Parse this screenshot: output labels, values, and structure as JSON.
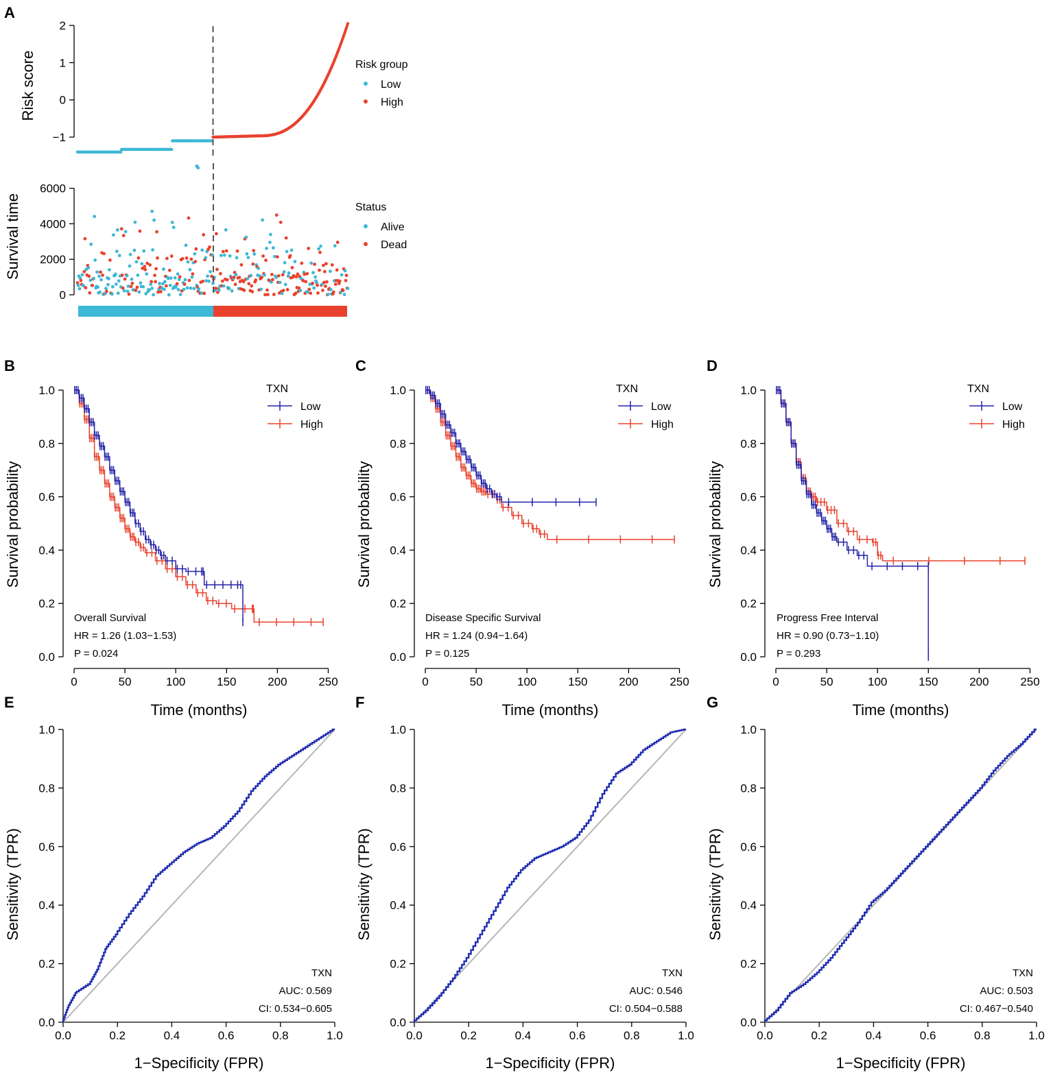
{
  "colors": {
    "low_point": "#3db8d5",
    "high_point": "#e8422e",
    "low_line": "#2323a8",
    "high_line": "#e8422e",
    "roc_line": "#1f2cb0",
    "diag": "#b5b5b5",
    "dash": "#555555"
  },
  "chart_data": [
    {
      "panel": "A",
      "type": "scatter",
      "subplot": "risk_score",
      "ylabel": "Risk score",
      "ylim": [
        -1.5,
        2.1
      ],
      "yticks": [
        -1,
        0,
        1,
        2
      ],
      "legend_title": "Risk group",
      "legend": [
        "Low",
        "High"
      ],
      "n_samples": 400,
      "cutoff_index": 200,
      "series": [
        {
          "name": "Low",
          "segments": [
            [
              0,
              65,
              -1.4
            ],
            [
              65,
              140,
              -1.33
            ],
            [
              140,
              200,
              -1.1
            ]
          ]
        },
        {
          "name": "High",
          "start": -1.0,
          "end": 2.05
        }
      ]
    },
    {
      "panel": "A",
      "type": "scatter",
      "subplot": "survival_time",
      "ylabel": "Survival time",
      "ylim": [
        0,
        7400
      ],
      "yticks": [
        0,
        2000,
        4000,
        6000
      ],
      "legend_title": "Status",
      "legend": [
        "Alive",
        "Dead"
      ],
      "bar_groups": [
        "Low",
        "High"
      ]
    },
    {
      "panel": "B",
      "type": "line",
      "annotation": "Overall Survival",
      "hr": "HR = 1.26 (1.03−1.53)",
      "p": "P = 0.024",
      "xlabel": "Time (months)",
      "ylabel": "Survival probability",
      "xlim": [
        0,
        250
      ],
      "ylim": [
        0,
        1
      ],
      "xticks": [
        0,
        50,
        100,
        150,
        200,
        250
      ],
      "yticks": [
        0.0,
        0.2,
        0.4,
        0.6,
        0.8,
        1.0
      ],
      "legend_title": "TXN",
      "series": [
        {
          "name": "Low",
          "points": [
            [
              0,
              1
            ],
            [
              5,
              0.97
            ],
            [
              10,
              0.93
            ],
            [
              15,
              0.88
            ],
            [
              20,
              0.83
            ],
            [
              25,
              0.79
            ],
            [
              30,
              0.75
            ],
            [
              35,
              0.7
            ],
            [
              40,
              0.66
            ],
            [
              45,
              0.62
            ],
            [
              50,
              0.58
            ],
            [
              55,
              0.54
            ],
            [
              60,
              0.5
            ],
            [
              65,
              0.47
            ],
            [
              70,
              0.44
            ],
            [
              75,
              0.42
            ],
            [
              80,
              0.4
            ],
            [
              85,
              0.38
            ],
            [
              90,
              0.36
            ],
            [
              100,
              0.33
            ],
            [
              110,
              0.32
            ],
            [
              125,
              0.32
            ],
            [
              128,
              0.27
            ],
            [
              160,
              0.27
            ],
            [
              166,
              0.13
            ]
          ]
        },
        {
          "name": "High",
          "points": [
            [
              0,
              1
            ],
            [
              5,
              0.95
            ],
            [
              10,
              0.89
            ],
            [
              15,
              0.82
            ],
            [
              20,
              0.75
            ],
            [
              25,
              0.7
            ],
            [
              30,
              0.65
            ],
            [
              35,
              0.6
            ],
            [
              40,
              0.56
            ],
            [
              45,
              0.52
            ],
            [
              50,
              0.48
            ],
            [
              55,
              0.45
            ],
            [
              60,
              0.43
            ],
            [
              65,
              0.41
            ],
            [
              70,
              0.39
            ],
            [
              80,
              0.36
            ],
            [
              90,
              0.33
            ],
            [
              100,
              0.3
            ],
            [
              110,
              0.27
            ],
            [
              120,
              0.24
            ],
            [
              130,
              0.21
            ],
            [
              140,
              0.2
            ],
            [
              155,
              0.18
            ],
            [
              175,
              0.18
            ],
            [
              177,
              0.13
            ],
            [
              245,
              0.13
            ]
          ]
        }
      ]
    },
    {
      "panel": "C",
      "type": "line",
      "annotation": "Disease Specific Survival",
      "hr": "HR = 1.24 (0.94−1.64)",
      "p": "P = 0.125",
      "xlabel": "Time (months)",
      "ylabel": "Survival probability",
      "xlim": [
        0,
        250
      ],
      "ylim": [
        0,
        1
      ],
      "xticks": [
        0,
        50,
        100,
        150,
        200,
        250
      ],
      "yticks": [
        0.0,
        0.2,
        0.4,
        0.6,
        0.8,
        1.0
      ],
      "legend_title": "TXN",
      "series": [
        {
          "name": "Low",
          "points": [
            [
              0,
              1
            ],
            [
              5,
              0.98
            ],
            [
              10,
              0.95
            ],
            [
              15,
              0.91
            ],
            [
              20,
              0.87
            ],
            [
              25,
              0.84
            ],
            [
              30,
              0.8
            ],
            [
              35,
              0.77
            ],
            [
              40,
              0.74
            ],
            [
              45,
              0.71
            ],
            [
              50,
              0.68
            ],
            [
              55,
              0.65
            ],
            [
              60,
              0.63
            ],
            [
              65,
              0.61
            ],
            [
              70,
              0.6
            ],
            [
              75,
              0.58
            ],
            [
              168,
              0.58
            ]
          ]
        },
        {
          "name": "High",
          "points": [
            [
              0,
              1
            ],
            [
              5,
              0.97
            ],
            [
              10,
              0.93
            ],
            [
              15,
              0.88
            ],
            [
              20,
              0.83
            ],
            [
              25,
              0.79
            ],
            [
              30,
              0.75
            ],
            [
              35,
              0.71
            ],
            [
              40,
              0.68
            ],
            [
              45,
              0.65
            ],
            [
              50,
              0.63
            ],
            [
              55,
              0.62
            ],
            [
              60,
              0.61
            ],
            [
              70,
              0.59
            ],
            [
              75,
              0.56
            ],
            [
              85,
              0.53
            ],
            [
              95,
              0.5
            ],
            [
              105,
              0.48
            ],
            [
              112,
              0.46
            ],
            [
              120,
              0.44
            ],
            [
              245,
              0.44
            ]
          ]
        }
      ]
    },
    {
      "panel": "D",
      "type": "line",
      "annotation": "Progress Free Interval",
      "hr": "HR = 0.90 (0.73−1.10)",
      "p": "P = 0.293",
      "xlabel": "Time (months)",
      "ylabel": "Survival probability",
      "xlim": [
        0,
        250
      ],
      "ylim": [
        0,
        1
      ],
      "xticks": [
        0,
        50,
        100,
        150,
        200,
        250
      ],
      "yticks": [
        0.0,
        0.2,
        0.4,
        0.6,
        0.8,
        1.0
      ],
      "legend_title": "TXN",
      "series": [
        {
          "name": "Low",
          "points": [
            [
              0,
              1
            ],
            [
              5,
              0.95
            ],
            [
              10,
              0.88
            ],
            [
              15,
              0.8
            ],
            [
              20,
              0.72
            ],
            [
              25,
              0.66
            ],
            [
              30,
              0.61
            ],
            [
              35,
              0.57
            ],
            [
              40,
              0.54
            ],
            [
              45,
              0.51
            ],
            [
              50,
              0.48
            ],
            [
              55,
              0.45
            ],
            [
              60,
              0.43
            ],
            [
              70,
              0.4
            ],
            [
              80,
              0.38
            ],
            [
              90,
              0.34
            ],
            [
              150,
              0.34
            ],
            [
              150,
              0.0
            ]
          ]
        },
        {
          "name": "High",
          "points": [
            [
              0,
              1
            ],
            [
              5,
              0.95
            ],
            [
              10,
              0.88
            ],
            [
              15,
              0.8
            ],
            [
              20,
              0.73
            ],
            [
              25,
              0.67
            ],
            [
              30,
              0.62
            ],
            [
              35,
              0.6
            ],
            [
              40,
              0.58
            ],
            [
              50,
              0.55
            ],
            [
              60,
              0.5
            ],
            [
              70,
              0.47
            ],
            [
              80,
              0.44
            ],
            [
              95,
              0.43
            ],
            [
              100,
              0.38
            ],
            [
              105,
              0.36
            ],
            [
              245,
              0.36
            ]
          ]
        }
      ]
    },
    {
      "panel": "E",
      "type": "line",
      "label": "TXN",
      "auc": "AUC: 0.569",
      "ci": "CI: 0.534−0.605",
      "xlabel": "1−Specificity (FPR)",
      "ylabel": "Sensitivity (TPR)",
      "xlim": [
        0,
        1
      ],
      "ylim": [
        0,
        1
      ],
      "xticks": [
        0.0,
        0.2,
        0.4,
        0.6,
        0.8,
        1.0
      ],
      "yticks": [
        0.0,
        0.2,
        0.4,
        0.6,
        0.8,
        1.0
      ],
      "series": [
        {
          "name": "TXN",
          "points": [
            [
              0,
              0
            ],
            [
              0.02,
              0.05
            ],
            [
              0.05,
              0.1
            ],
            [
              0.1,
              0.13
            ],
            [
              0.13,
              0.18
            ],
            [
              0.16,
              0.25
            ],
            [
              0.2,
              0.3
            ],
            [
              0.25,
              0.37
            ],
            [
              0.3,
              0.43
            ],
            [
              0.35,
              0.5
            ],
            [
              0.4,
              0.54
            ],
            [
              0.45,
              0.58
            ],
            [
              0.5,
              0.61
            ],
            [
              0.55,
              0.63
            ],
            [
              0.6,
              0.67
            ],
            [
              0.65,
              0.72
            ],
            [
              0.7,
              0.79
            ],
            [
              0.75,
              0.84
            ],
            [
              0.8,
              0.88
            ],
            [
              0.85,
              0.91
            ],
            [
              0.9,
              0.94
            ],
            [
              0.95,
              0.97
            ],
            [
              1,
              1
            ]
          ]
        }
      ]
    },
    {
      "panel": "F",
      "type": "line",
      "label": "TXN",
      "auc": "AUC: 0.546",
      "ci": "CI: 0.504−0.588",
      "xlabel": "1−Specificity (FPR)",
      "ylabel": "Sensitivity (TPR)",
      "xlim": [
        0,
        1
      ],
      "ylim": [
        0,
        1
      ],
      "xticks": [
        0.0,
        0.2,
        0.4,
        0.6,
        0.8,
        1.0
      ],
      "yticks": [
        0.0,
        0.2,
        0.4,
        0.6,
        0.8,
        1.0
      ],
      "series": [
        {
          "name": "TXN",
          "points": [
            [
              0,
              0
            ],
            [
              0.05,
              0.04
            ],
            [
              0.1,
              0.09
            ],
            [
              0.15,
              0.15
            ],
            [
              0.2,
              0.22
            ],
            [
              0.25,
              0.3
            ],
            [
              0.3,
              0.38
            ],
            [
              0.35,
              0.46
            ],
            [
              0.4,
              0.52
            ],
            [
              0.45,
              0.56
            ],
            [
              0.5,
              0.58
            ],
            [
              0.55,
              0.6
            ],
            [
              0.6,
              0.63
            ],
            [
              0.65,
              0.69
            ],
            [
              0.7,
              0.78
            ],
            [
              0.75,
              0.85
            ],
            [
              0.8,
              0.88
            ],
            [
              0.85,
              0.93
            ],
            [
              0.9,
              0.96
            ],
            [
              0.95,
              0.99
            ],
            [
              1,
              1
            ]
          ]
        }
      ]
    },
    {
      "panel": "G",
      "type": "line",
      "label": "TXN",
      "auc": "AUC: 0.503",
      "ci": "CI: 0.467−0.540",
      "xlabel": "1−Specificity (FPR)",
      "ylabel": "Sensitivity (TPR)",
      "xlim": [
        0,
        1
      ],
      "ylim": [
        0,
        1
      ],
      "xticks": [
        0.0,
        0.2,
        0.4,
        0.6,
        0.8,
        1.0
      ],
      "yticks": [
        0.0,
        0.2,
        0.4,
        0.6,
        0.8,
        1.0
      ],
      "series": [
        {
          "name": "TXN",
          "points": [
            [
              0,
              0
            ],
            [
              0.05,
              0.04
            ],
            [
              0.1,
              0.1
            ],
            [
              0.15,
              0.13
            ],
            [
              0.2,
              0.17
            ],
            [
              0.25,
              0.22
            ],
            [
              0.3,
              0.28
            ],
            [
              0.35,
              0.34
            ],
            [
              0.4,
              0.41
            ],
            [
              0.45,
              0.45
            ],
            [
              0.5,
              0.5
            ],
            [
              0.55,
              0.55
            ],
            [
              0.6,
              0.6
            ],
            [
              0.65,
              0.65
            ],
            [
              0.7,
              0.7
            ],
            [
              0.75,
              0.75
            ],
            [
              0.8,
              0.8
            ],
            [
              0.85,
              0.86
            ],
            [
              0.9,
              0.91
            ],
            [
              0.95,
              0.95
            ],
            [
              1,
              1
            ]
          ]
        }
      ]
    }
  ]
}
